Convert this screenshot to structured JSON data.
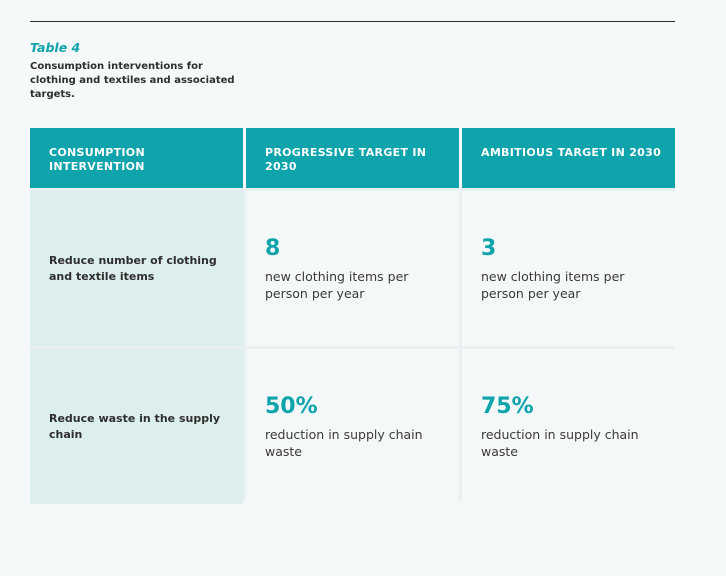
{
  "caption": {
    "label": "Table 4",
    "text": "Consumption interventions for clothing and textiles and associated targets."
  },
  "table": {
    "headers": [
      "CONSUMPTION INTERVENTION",
      "PROGRESSIVE TARGET IN 2030",
      "AMBITIOUS TARGET IN 2030"
    ],
    "rows": [
      {
        "intervention": "Reduce number of clothing and textile items",
        "progressive": {
          "value": "8",
          "description": "new clothing items per person per year"
        },
        "ambitious": {
          "value": "3",
          "description": "new clothing items per person per year"
        }
      },
      {
        "intervention": "Reduce waste in the supply chain",
        "progressive": {
          "value": "50%",
          "description": "reduction in supply chain waste"
        },
        "ambitious": {
          "value": "75%",
          "description": "reduction in supply chain waste"
        }
      }
    ]
  },
  "colors": {
    "accent": "#0fa3ab",
    "row_header_bg": "#ddeeee",
    "text": "#2e2e2e"
  }
}
